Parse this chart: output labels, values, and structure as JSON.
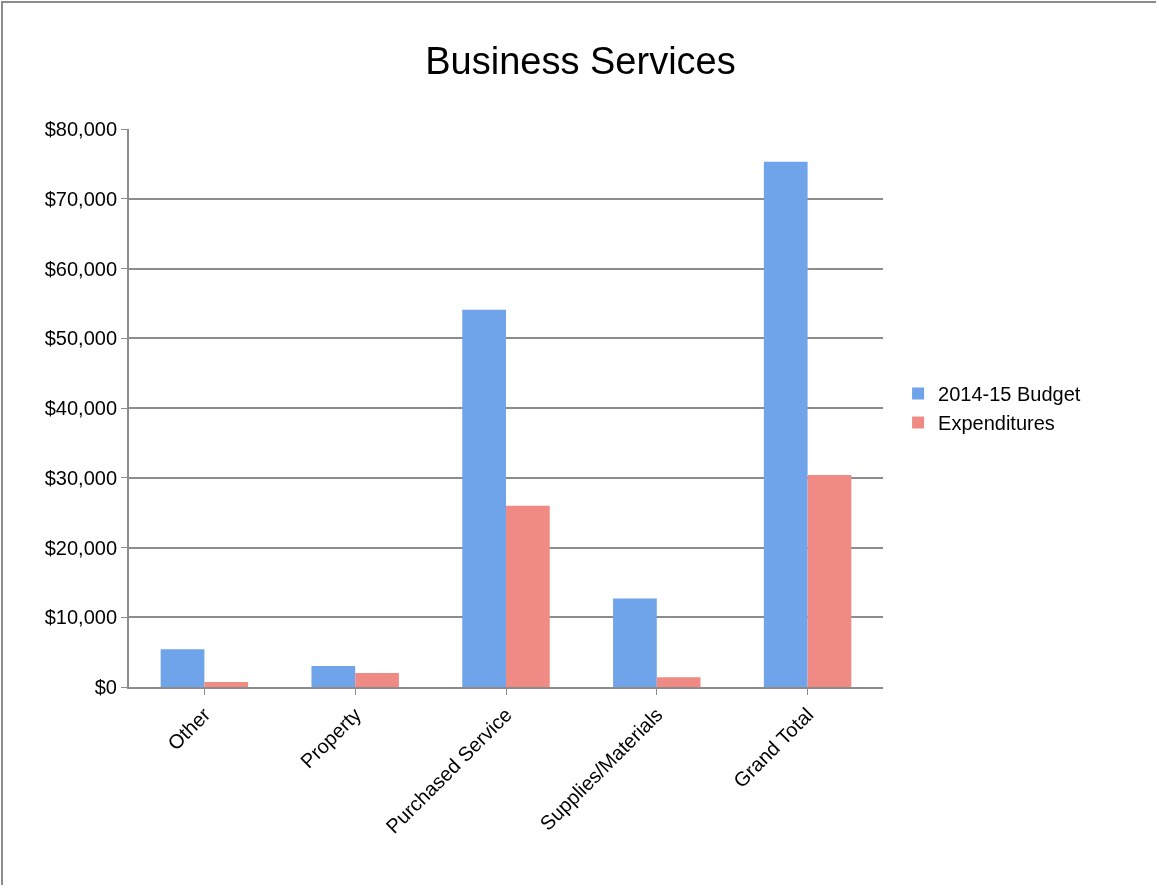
{
  "chart_data": {
    "type": "bar",
    "title": "Business Services",
    "categories": [
      "Other",
      "Property",
      "Purchased Service",
      "Supplies/Materials",
      "Grand Total"
    ],
    "series": [
      {
        "name": "2014-15 Budget",
        "color": "#6fa4ea",
        "values": [
          5400,
          3000,
          54100,
          12700,
          75300
        ]
      },
      {
        "name": "Expenditures",
        "color": "#f08a84",
        "values": [
          700,
          2000,
          26000,
          1400,
          30400
        ]
      }
    ],
    "ylim": [
      0,
      80000
    ],
    "yticks": [
      {
        "value": 0,
        "label": "$0"
      },
      {
        "value": 10000,
        "label": "$10,000"
      },
      {
        "value": 20000,
        "label": "$20,000"
      },
      {
        "value": 30000,
        "label": "$30,000"
      },
      {
        "value": 40000,
        "label": "$40,000"
      },
      {
        "value": 50000,
        "label": "$50,000"
      },
      {
        "value": 60000,
        "label": "$60,000"
      },
      {
        "value": 70000,
        "label": "$70,000"
      },
      {
        "value": 80000,
        "label": "$80,000"
      }
    ],
    "grid": "y",
    "legend": "right"
  }
}
